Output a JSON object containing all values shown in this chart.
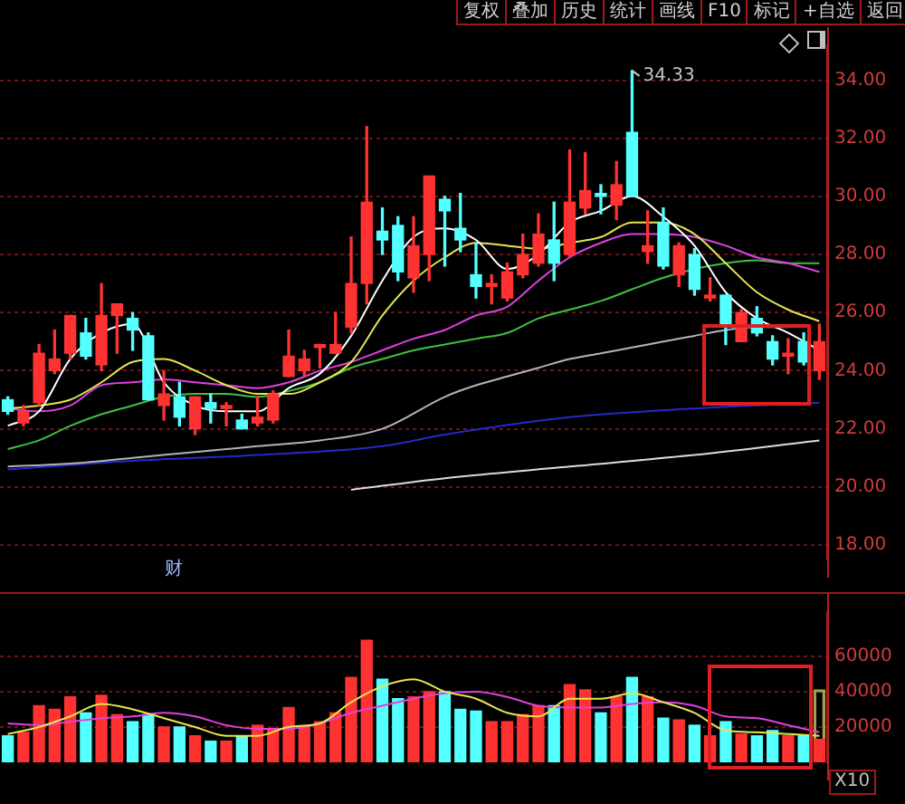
{
  "chart_data": [
    {
      "type": "candlestick",
      "categories": [
        null,
        null,
        null,
        null,
        null,
        null,
        null,
        null,
        null,
        null,
        null,
        null,
        null,
        null,
        null,
        null,
        null,
        null,
        null,
        null,
        null,
        null,
        null,
        null,
        null,
        null,
        null,
        null,
        null,
        null,
        null,
        null,
        null,
        null,
        null,
        null,
        null,
        null,
        null,
        null,
        null,
        null,
        null,
        null,
        null,
        null,
        null,
        null,
        null,
        null,
        null,
        null,
        null
      ],
      "ohlc": [
        [
          23.0,
          23.1,
          22.5,
          22.6
        ],
        [
          22.2,
          22.8,
          22.1,
          22.6
        ],
        [
          22.9,
          24.9,
          22.8,
          24.6
        ],
        [
          24.0,
          25.4,
          23.9,
          24.4
        ],
        [
          24.6,
          25.9,
          24.4,
          25.9
        ],
        [
          25.3,
          25.8,
          24.4,
          24.5
        ],
        [
          24.2,
          27.0,
          24.0,
          25.9
        ],
        [
          25.9,
          26.3,
          24.6,
          26.3
        ],
        [
          25.8,
          26.0,
          24.7,
          25.4
        ],
        [
          25.2,
          25.3,
          23.0,
          23.0
        ],
        [
          22.8,
          24.0,
          22.3,
          23.2
        ],
        [
          23.1,
          23.6,
          22.1,
          22.4
        ],
        [
          22.0,
          23.1,
          21.8,
          23.1
        ],
        [
          22.9,
          23.2,
          22.2,
          22.7
        ],
        [
          22.7,
          22.9,
          22.1,
          22.8
        ],
        [
          22.3,
          22.5,
          22.0,
          22.0
        ],
        [
          22.2,
          23.1,
          22.1,
          22.4
        ],
        [
          22.3,
          23.3,
          22.2,
          23.2
        ],
        [
          23.8,
          25.4,
          23.8,
          24.5
        ],
        [
          24.0,
          24.7,
          23.8,
          24.4
        ],
        [
          24.8,
          24.9,
          24.1,
          24.9
        ],
        [
          24.6,
          26.0,
          24.6,
          24.9
        ],
        [
          25.5,
          28.6,
          25.3,
          27.0
        ],
        [
          27.0,
          32.4,
          26.3,
          29.8
        ],
        [
          28.8,
          29.6,
          28.0,
          28.5
        ],
        [
          29.0,
          29.3,
          27.1,
          27.4
        ],
        [
          27.2,
          29.3,
          26.7,
          28.3
        ],
        [
          28.0,
          30.7,
          27.1,
          30.7
        ],
        [
          29.9,
          30.0,
          27.6,
          29.5
        ],
        [
          28.9,
          30.1,
          28.1,
          28.5
        ],
        [
          27.3,
          28.4,
          26.5,
          26.9
        ],
        [
          26.9,
          27.3,
          26.3,
          27.0
        ],
        [
          26.5,
          27.7,
          26.4,
          27.4
        ],
        [
          27.3,
          28.7,
          27.2,
          28.0
        ],
        [
          27.7,
          29.4,
          27.6,
          28.7
        ],
        [
          28.5,
          29.8,
          27.1,
          27.7
        ],
        [
          28.0,
          31.6,
          27.9,
          29.8
        ],
        [
          29.6,
          31.5,
          29.4,
          30.2
        ],
        [
          30.1,
          30.4,
          29.4,
          30.0
        ],
        [
          29.7,
          31.2,
          29.2,
          30.4
        ],
        [
          32.2,
          34.33,
          30.0,
          30.0
        ],
        [
          28.1,
          29.5,
          27.7,
          28.3
        ],
        [
          29.1,
          29.6,
          27.5,
          27.6
        ],
        [
          27.3,
          28.4,
          26.9,
          28.3
        ],
        [
          28.0,
          28.2,
          26.6,
          26.8
        ],
        [
          26.5,
          27.2,
          26.4,
          26.6
        ],
        [
          26.6,
          26.6,
          24.9,
          25.5
        ],
        [
          25.0,
          26.1,
          25.0,
          26.0
        ],
        [
          25.8,
          26.2,
          25.2,
          25.3
        ],
        [
          25.0,
          25.2,
          24.2,
          24.4
        ],
        [
          24.5,
          25.1,
          23.9,
          24.6
        ],
        [
          25.0,
          25.3,
          24.2,
          24.3
        ],
        [
          24.0,
          25.6,
          23.7,
          25.0
        ]
      ],
      "colors": [
        "#54ffff",
        "#ff3232",
        "#ff3232",
        "#ff3232",
        "#ff3232",
        "#54ffff",
        "#ff3232",
        "#ff3232",
        "#54ffff",
        "#54ffff",
        "#ff3232",
        "#54ffff",
        "#ff3232",
        "#54ffff",
        "#ff3232",
        "#54ffff",
        "#ff3232",
        "#ff3232",
        "#ff3232",
        "#ff3232",
        "#ff3232",
        "#ff3232",
        "#ff3232",
        "#ff3232",
        "#54ffff",
        "#54ffff",
        "#ff3232",
        "#ff3232",
        "#54ffff",
        "#54ffff",
        "#54ffff",
        "#ff3232",
        "#ff3232",
        "#ff3232",
        "#ff3232",
        "#54ffff",
        "#ff3232",
        "#ff3232",
        "#54ffff",
        "#ff3232",
        "#54ffff",
        "#ff3232",
        "#54ffff",
        "#ff3232",
        "#54ffff",
        "#ff3232",
        "#54ffff",
        "#ff3232",
        "#54ffff",
        "#54ffff",
        "#ff3232",
        "#54ffff",
        "#ff3232"
      ],
      "series": [
        {
          "type": "line",
          "color": "#ffffff",
          "values": [
            22.1,
            null,
            22.6,
            null,
            24.4,
            null,
            25.3,
            null,
            25.6,
            null,
            23.6,
            null,
            22.8,
            null,
            22.6,
            null,
            22.6,
            null,
            23.4,
            null,
            23.9,
            null,
            25.2,
            null,
            27.1,
            null,
            28.6,
            null,
            28.9,
            null,
            28.5,
            null,
            27.5,
            null,
            28.0,
            null,
            29.1,
            null,
            29.5,
            null,
            30.0,
            null,
            29.3,
            null,
            28.3,
            null,
            26.7,
            null,
            25.8,
            null,
            25.3,
            null,
            24.7
          ]
        },
        {
          "type": "line",
          "color": "#e6e650",
          "values": [
            22.7,
            null,
            22.8,
            null,
            23.0,
            null,
            23.6,
            null,
            24.3,
            null,
            24.4,
            null,
            24.0,
            null,
            23.5,
            null,
            23.2,
            null,
            23.2,
            null,
            23.6,
            null,
            24.3,
            null,
            25.9,
            null,
            27.1,
            null,
            27.9,
            null,
            28.4,
            null,
            28.3,
            null,
            28.2,
            null,
            28.4,
            null,
            28.6,
            null,
            29.1,
            null,
            29.1,
            null,
            28.7,
            null,
            27.7,
            null,
            26.7,
            null,
            26.1,
            null,
            25.7
          ]
        },
        {
          "type": "line",
          "color": "#e040e0",
          "values": [
            22.7,
            null,
            22.6,
            null,
            22.8,
            null,
            23.5,
            null,
            23.6,
            null,
            23.7,
            null,
            23.6,
            null,
            23.5,
            null,
            23.4,
            null,
            23.6,
            null,
            24.0,
            null,
            24.3,
            null,
            24.7,
            null,
            25.1,
            null,
            25.4,
            null,
            25.9,
            null,
            26.2,
            null,
            27.1,
            null,
            27.9,
            null,
            28.4,
            null,
            28.7,
            null,
            28.7,
            null,
            28.6,
            null,
            28.3,
            null,
            27.9,
            null,
            27.7,
            null,
            27.4
          ]
        },
        {
          "type": "line",
          "color": "#40c040",
          "values": [
            21.3,
            null,
            21.6,
            null,
            22.1,
            null,
            22.5,
            null,
            22.8,
            null,
            23.1,
            null,
            23.2,
            null,
            23.2,
            null,
            23.1,
            null,
            23.3,
            null,
            23.6,
            null,
            24.1,
            null,
            24.4,
            null,
            24.7,
            null,
            24.9,
            null,
            25.1,
            null,
            25.3,
            null,
            25.8,
            null,
            26.1,
            null,
            26.4,
            null,
            26.8,
            null,
            27.2,
            null,
            27.5,
            null,
            27.7,
            null,
            27.8,
            null,
            27.7,
            null,
            27.7
          ]
        },
        {
          "type": "line",
          "color": "#b4b4b4",
          "values": [
            20.7,
            null,
            null,
            null,
            20.8,
            null,
            null,
            null,
            21.0,
            null,
            null,
            null,
            21.2,
            null,
            null,
            null,
            21.4,
            null,
            null,
            null,
            21.6,
            null,
            null,
            null,
            22.0,
            null,
            null,
            null,
            23.1,
            null,
            23.5,
            null,
            23.8,
            null,
            24.1,
            null,
            24.4,
            null,
            24.6,
            null,
            24.8,
            null,
            25.0,
            null,
            25.2,
            null,
            25.4,
            null,
            25.5,
            null,
            25.5,
            null,
            null
          ]
        },
        {
          "type": "line",
          "color": "#2828c8",
          "values": [
            20.6,
            null,
            null,
            null,
            null,
            null,
            null,
            null,
            20.9,
            null,
            null,
            null,
            null,
            null,
            null,
            null,
            21.1,
            null,
            null,
            null,
            null,
            null,
            null,
            null,
            21.4,
            null,
            null,
            null,
            21.8,
            null,
            null,
            null,
            null,
            null,
            null,
            null,
            22.4,
            null,
            null,
            null,
            null,
            null,
            null,
            null,
            22.7,
            null,
            null,
            null,
            null,
            null,
            null,
            null,
            22.9
          ]
        },
        {
          "type": "line",
          "color": "#dcdcdc",
          "values": [
            null,
            null,
            null,
            null,
            null,
            null,
            null,
            null,
            null,
            null,
            null,
            null,
            null,
            null,
            null,
            null,
            null,
            null,
            null,
            null,
            null,
            null,
            19.9,
            null,
            null,
            null,
            null,
            null,
            20.3,
            null,
            null,
            null,
            null,
            null,
            null,
            null,
            20.7,
            null,
            null,
            null,
            null,
            null,
            null,
            null,
            21.1,
            null,
            null,
            null,
            null,
            null,
            null,
            null,
            21.6
          ]
        }
      ],
      "ylim": [
        17.5,
        35.2
      ],
      "yticks": [
        {
          "value": 18,
          "label": "18.00"
        },
        {
          "value": 20,
          "label": "20.00"
        },
        {
          "value": 22,
          "label": "22.00"
        },
        {
          "value": 24,
          "label": "24.00"
        },
        {
          "value": 26,
          "label": "26.00"
        },
        {
          "value": 28,
          "label": "28.00"
        },
        {
          "value": 30,
          "label": "30.00"
        },
        {
          "value": 32,
          "label": "32.00"
        },
        {
          "value": 34,
          "label": "34.00"
        }
      ],
      "grid": "y",
      "tick_labels": "y",
      "annotations": [
        "复权",
        "叠加",
        "历史",
        "统计",
        "画线",
        "F10",
        "标记",
        "+自选",
        "返回",
        "财",
        "34.33"
      ]
    },
    {
      "type": "bar",
      "ylabel": "X10",
      "categories": [
        null,
        null,
        null,
        null,
        null,
        null,
        null,
        null,
        null,
        null,
        null,
        null,
        null,
        null,
        null,
        null,
        null,
        null,
        null,
        null,
        null,
        null,
        null,
        null,
        null,
        null,
        null,
        null,
        null,
        null,
        null,
        null,
        null,
        null,
        null,
        null,
        null,
        null,
        null,
        null,
        null,
        null,
        null,
        null,
        null,
        null,
        null,
        null,
        null,
        null,
        null,
        null,
        null
      ],
      "series": [
        {
          "type": "bar",
          "values": [
            15000,
            17000,
            32000,
            30000,
            37000,
            28000,
            38000,
            27000,
            23000,
            27000,
            20000,
            20000,
            15000,
            12000,
            12000,
            15000,
            21000,
            19000,
            31000,
            20000,
            23000,
            28000,
            48000,
            69000,
            47000,
            36000,
            37000,
            40000,
            40000,
            30000,
            29000,
            23000,
            23000,
            27000,
            32000,
            32000,
            44000,
            41000,
            28000,
            37000,
            48000,
            37000,
            25000,
            24000,
            21000,
            15000,
            23000,
            16000,
            15000,
            18000,
            15000,
            15000,
            13000
          ],
          "colors": [
            "#54ffff",
            "#ff3232",
            "#ff3232",
            "#ff3232",
            "#ff3232",
            "#54ffff",
            "#ff3232",
            "#ff3232",
            "#54ffff",
            "#54ffff",
            "#ff3232",
            "#54ffff",
            "#ff3232",
            "#54ffff",
            "#ff3232",
            "#54ffff",
            "#ff3232",
            "#ff3232",
            "#ff3232",
            "#ff3232",
            "#ff3232",
            "#ff3232",
            "#ff3232",
            "#ff3232",
            "#54ffff",
            "#54ffff",
            "#ff3232",
            "#ff3232",
            "#54ffff",
            "#54ffff",
            "#54ffff",
            "#ff3232",
            "#ff3232",
            "#ff3232",
            "#ff3232",
            "#54ffff",
            "#ff3232",
            "#ff3232",
            "#54ffff",
            "#ff3232",
            "#54ffff",
            "#ff3232",
            "#54ffff",
            "#ff3232",
            "#54ffff",
            "#ff3232",
            "#54ffff",
            "#ff3232",
            "#54ffff",
            "#54ffff",
            "#ff3232",
            "#54ffff",
            "#ff3232"
          ]
        },
        {
          "type": "bar",
          "color": "#a0a050",
          "values": [
            null,
            null,
            null,
            null,
            null,
            null,
            null,
            null,
            null,
            null,
            null,
            null,
            null,
            null,
            null,
            null,
            null,
            null,
            null,
            null,
            null,
            null,
            null,
            null,
            null,
            null,
            null,
            null,
            null,
            null,
            null,
            null,
            null,
            null,
            null,
            null,
            null,
            null,
            null,
            null,
            null,
            null,
            null,
            null,
            null,
            null,
            null,
            null,
            null,
            null,
            null,
            null,
            41000
          ]
        },
        {
          "type": "line",
          "color": "#e6e650",
          "values": [
            16000,
            null,
            20000,
            null,
            26000,
            null,
            33000,
            null,
            30000,
            null,
            25000,
            null,
            20000,
            null,
            15000,
            null,
            15000,
            null,
            20000,
            null,
            22000,
            null,
            34000,
            null,
            43000,
            null,
            47000,
            null,
            40000,
            null,
            36000,
            null,
            28000,
            null,
            26000,
            null,
            36000,
            null,
            36000,
            null,
            39000,
            null,
            34000,
            null,
            28000,
            null,
            18000,
            null,
            17000,
            null,
            16000,
            null,
            15000
          ]
        },
        {
          "type": "line",
          "color": "#e040e0",
          "values": [
            22000,
            null,
            21000,
            null,
            23000,
            null,
            25000,
            null,
            26000,
            null,
            28000,
            null,
            26000,
            null,
            21000,
            null,
            19000,
            null,
            19000,
            null,
            22000,
            null,
            28000,
            null,
            32000,
            null,
            36000,
            null,
            39000,
            null,
            40000,
            null,
            37000,
            null,
            32000,
            null,
            31000,
            null,
            31000,
            null,
            33000,
            null,
            34000,
            null,
            32000,
            null,
            26000,
            null,
            25000,
            null,
            21000,
            null,
            17000
          ]
        }
      ],
      "ylim": [
        0,
        85000
      ],
      "yticks": [
        20000,
        40000,
        60000
      ],
      "grid": "y",
      "tick_labels": "y"
    }
  ]
}
